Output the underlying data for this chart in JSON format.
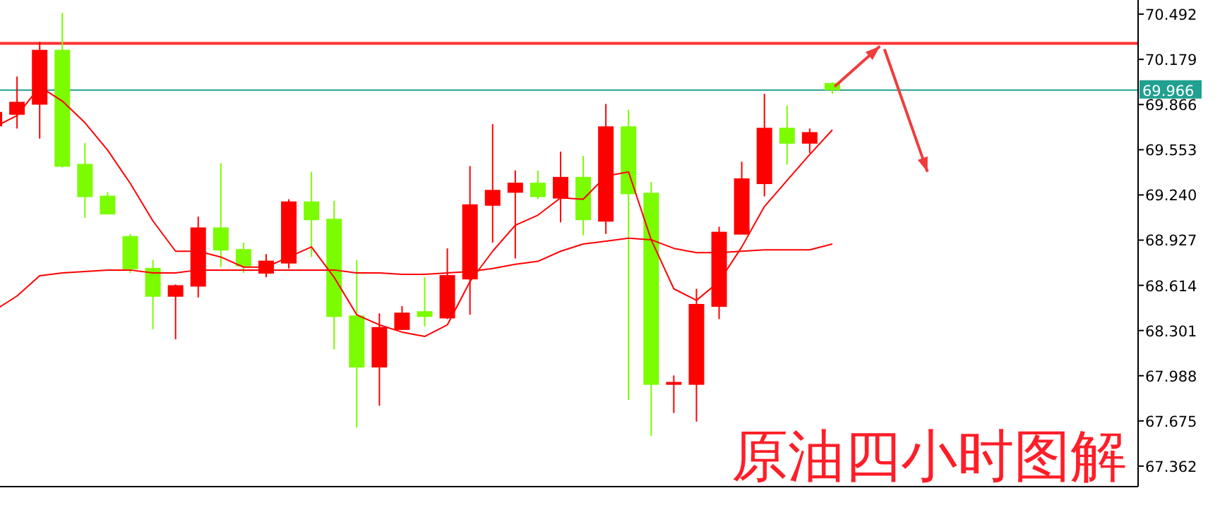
{
  "chart_data": {
    "type": "candlestick",
    "title": "原油四小时图解",
    "categories": [
      null,
      null,
      null,
      null,
      null,
      null,
      null,
      null,
      null,
      null,
      null,
      null,
      null,
      null,
      null,
      null,
      null,
      null,
      null,
      null,
      null,
      null,
      null,
      null,
      null,
      null,
      null,
      null,
      null,
      null,
      null,
      null,
      null,
      null,
      null,
      null,
      null,
      null,
      null,
      null,
      null,
      null,
      null,
      null,
      null,
      null,
      null,
      null,
      null,
      null,
      null
    ],
    "ohlc": [
      [
        69.72,
        69.83,
        69.71,
        69.81
      ],
      [
        69.8,
        70.06,
        69.7,
        69.88
      ],
      [
        69.87,
        70.3,
        69.63,
        70.24
      ],
      [
        70.24,
        70.5,
        69.43,
        69.44
      ],
      [
        69.45,
        69.6,
        69.08,
        69.23
      ],
      [
        69.23,
        69.26,
        69.11,
        69.11
      ],
      [
        68.95,
        68.97,
        68.7,
        68.73
      ],
      [
        68.73,
        68.79,
        68.31,
        68.54
      ],
      [
        68.54,
        68.62,
        68.24,
        68.61
      ],
      [
        68.61,
        69.09,
        68.53,
        69.01
      ],
      [
        69.01,
        69.46,
        68.74,
        68.86
      ],
      [
        68.86,
        68.91,
        68.7,
        68.75
      ],
      [
        68.7,
        68.83,
        68.67,
        68.78
      ],
      [
        68.77,
        69.21,
        68.73,
        69.19
      ],
      [
        69.19,
        69.4,
        68.81,
        69.07
      ],
      [
        69.07,
        69.2,
        68.17,
        68.4
      ],
      [
        68.4,
        68.79,
        67.63,
        68.05
      ],
      [
        68.05,
        68.42,
        67.78,
        68.32
      ],
      [
        68.31,
        68.47,
        68.31,
        68.42
      ],
      [
        68.43,
        68.67,
        68.33,
        68.4
      ],
      [
        68.39,
        68.87,
        68.38,
        68.68
      ],
      [
        68.66,
        69.44,
        68.41,
        69.17
      ],
      [
        69.17,
        69.73,
        68.91,
        69.27
      ],
      [
        69.26,
        69.41,
        68.8,
        69.32
      ],
      [
        69.32,
        69.41,
        69.21,
        69.23
      ],
      [
        69.22,
        69.54,
        69.05,
        69.36
      ],
      [
        69.36,
        69.51,
        68.96,
        69.07
      ],
      [
        69.06,
        69.87,
        68.97,
        69.71
      ],
      [
        69.71,
        69.83,
        67.82,
        69.25
      ],
      [
        69.25,
        69.33,
        67.57,
        67.93
      ],
      [
        67.93,
        67.99,
        67.73,
        67.94
      ],
      [
        67.93,
        68.59,
        67.67,
        68.48
      ],
      [
        68.47,
        69.02,
        68.38,
        68.98
      ],
      [
        68.97,
        69.47,
        68.97,
        69.35
      ],
      [
        69.32,
        69.94,
        69.23,
        69.7
      ],
      [
        69.7,
        69.86,
        69.45,
        69.6
      ],
      [
        69.6,
        69.7,
        69.53,
        69.67
      ],
      [
        70.01,
        70.02,
        69.94,
        69.97
      ],
      null,
      null,
      null,
      null,
      null,
      null,
      null,
      null,
      null,
      null,
      null,
      null,
      null
    ],
    "colors": [
      "#ff0000",
      "#ff0000",
      "#ff0000",
      "#7cfc00",
      "#7cfc00",
      "#7cfc00",
      "#7cfc00",
      "#7cfc00",
      "#ff0000",
      "#ff0000",
      "#7cfc00",
      "#7cfc00",
      "#ff0000",
      "#ff0000",
      "#7cfc00",
      "#7cfc00",
      "#7cfc00",
      "#ff0000",
      "#ff0000",
      "#7cfc00",
      "#ff0000",
      "#ff0000",
      "#ff0000",
      "#ff0000",
      "#7cfc00",
      "#ff0000",
      "#7cfc00",
      "#ff0000",
      "#7cfc00",
      "#7cfc00",
      "#ff0000",
      "#ff0000",
      "#ff0000",
      "#ff0000",
      "#ff0000",
      "#7cfc00",
      "#ff0000",
      "#7cfc00",
      null,
      null,
      null,
      null,
      null,
      null,
      null,
      null,
      null,
      null,
      null,
      null,
      null
    ],
    "series": [
      {
        "type": "line",
        "color": "#ff0000",
        "values": [
          69.71,
          69.79,
          69.99,
          69.89,
          69.74,
          69.55,
          69.32,
          69.06,
          68.85,
          68.85,
          68.81,
          68.74,
          68.74,
          68.81,
          68.88,
          68.67,
          68.41,
          68.34,
          68.29,
          68.26,
          68.34,
          68.64,
          68.85,
          69.03,
          69.1,
          69.22,
          69.21,
          69.37,
          69.4,
          68.93,
          68.59,
          68.51,
          68.64,
          68.88,
          69.16,
          69.34,
          69.52,
          69.69,
          null,
          null,
          null,
          null,
          null,
          null,
          null,
          null,
          null,
          null,
          null,
          null,
          null
        ]
      },
      {
        "type": "line",
        "color": "#ff0000",
        "values": [
          68.44,
          68.54,
          68.68,
          68.7,
          68.71,
          68.72,
          68.72,
          68.7,
          68.7,
          68.72,
          68.72,
          68.72,
          68.72,
          68.72,
          68.72,
          68.72,
          68.7,
          68.7,
          68.69,
          68.69,
          68.7,
          68.71,
          68.73,
          68.76,
          68.78,
          68.85,
          68.9,
          68.92,
          68.94,
          68.93,
          68.87,
          68.84,
          68.84,
          68.85,
          68.86,
          68.86,
          68.86,
          68.9,
          null,
          null,
          null,
          null,
          null,
          null,
          null,
          null,
          null,
          null,
          null,
          null,
          null
        ]
      }
    ],
    "ylim": [
      67.22,
      70.59
    ],
    "yticks": [
      70.492,
      70.179,
      69.866,
      69.553,
      {
        "value": 69.24,
        "label": "69.240"
      },
      68.927,
      68.614,
      68.301,
      67.988,
      67.675,
      67.362
    ],
    "ref_lines": [
      {
        "axis": "y",
        "value": 69.966,
        "label": "69.966",
        "color": "#20a090"
      },
      {
        "axis": "y",
        "value": 70.29,
        "color": "#ff3030"
      }
    ],
    "grid": false
  }
}
